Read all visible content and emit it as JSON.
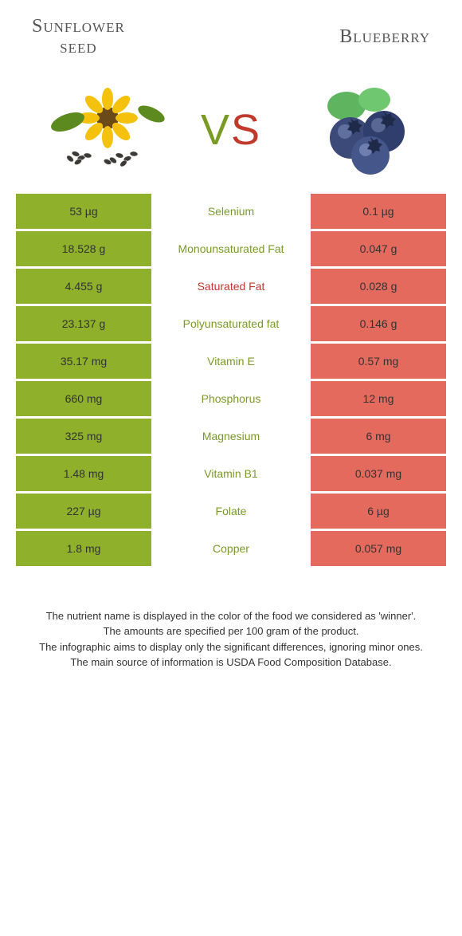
{
  "header": {
    "left_line1": "Sunflower",
    "left_line2": "seed",
    "right": "Blueberry"
  },
  "vs": {
    "v": "V",
    "s": "S"
  },
  "colors": {
    "left_bg": "#8eb02b",
    "right_bg": "#e46a5e",
    "left_text": "#7a9a26",
    "right_text": "#c0392b",
    "left_cell_text": "#333333",
    "right_cell_text": "#333333"
  },
  "rows": [
    {
      "left": "53 µg",
      "label": "Selenium",
      "right": "0.1 µg",
      "winner": "left"
    },
    {
      "left": "18.528 g",
      "label": "Monounsaturated Fat",
      "right": "0.047 g",
      "winner": "left"
    },
    {
      "left": "4.455 g",
      "label": "Saturated Fat",
      "right": "0.028 g",
      "winner": "right"
    },
    {
      "left": "23.137 g",
      "label": "Polyunsaturated fat",
      "right": "0.146 g",
      "winner": "left"
    },
    {
      "left": "35.17 mg",
      "label": "Vitamin E",
      "right": "0.57 mg",
      "winner": "left"
    },
    {
      "left": "660 mg",
      "label": "Phosphorus",
      "right": "12 mg",
      "winner": "left"
    },
    {
      "left": "325 mg",
      "label": "Magnesium",
      "right": "6 mg",
      "winner": "left"
    },
    {
      "left": "1.48 mg",
      "label": "Vitamin B1",
      "right": "0.037 mg",
      "winner": "left"
    },
    {
      "left": "227 µg",
      "label": "Folate",
      "right": "6 µg",
      "winner": "left"
    },
    {
      "left": "1.8 mg",
      "label": "Copper",
      "right": "0.057 mg",
      "winner": "left"
    }
  ],
  "footer": {
    "l1": "The nutrient name is displayed in the color of the food we considered as 'winner'.",
    "l2": "The amounts are specified per 100 gram of the product.",
    "l3": "The infographic aims to display only the significant differences, ignoring minor ones.",
    "l4": "The main source of information is USDA Food Composition Database."
  }
}
